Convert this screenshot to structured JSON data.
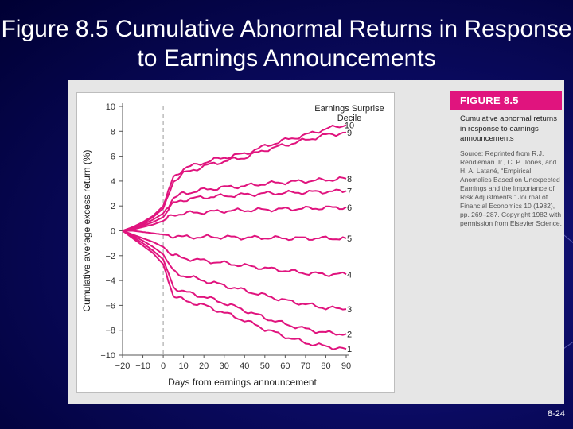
{
  "slide": {
    "title": "Figure 8.5 Cumulative Abnormal Returns in Response to Earnings Announcements",
    "number": "8-24"
  },
  "caption": {
    "heading": "FIGURE 8.5",
    "text": "Cumulative abnormal returns in response to earnings announcements",
    "source": "Source: Reprinted from R.J. Rendleman Jr., C. P. Jones, and H. A. Latané, “Empirical Anomalies Based on Unexpected Earnings and the Importance of Risk Adjustments,” Journal of Financial Economics 10 (1982), pp. 269–287. Copyright 1982 with permission from Elsevier Science."
  },
  "colors": {
    "series": "#e0147e",
    "background": "#000040",
    "caption_heading": "#e0147e"
  },
  "chart_data": {
    "type": "line",
    "xlabel": "Days from earnings announcement",
    "ylabel": "Cumulative average excess return (%)",
    "legend_title": "Earnings Surprise\nDecile",
    "xlim": [
      -20,
      90
    ],
    "ylim": [
      -10,
      10
    ],
    "x_ticks": [
      -20,
      -10,
      0,
      10,
      20,
      30,
      40,
      50,
      60,
      70,
      80,
      90
    ],
    "x_tick_labels": [
      "−20",
      "−10",
      "0",
      "10",
      "20",
      "30",
      "40",
      "50",
      "60",
      "70",
      "80",
      "90"
    ],
    "y_ticks": [
      -10,
      -8,
      -6,
      -4,
      -2,
      0,
      2,
      4,
      6,
      8,
      10
    ],
    "y_tick_labels": [
      "−10",
      "−8",
      "−6",
      "−4",
      "−2",
      "0",
      "2",
      "4",
      "6",
      "8",
      "10"
    ],
    "reference_line_x": 0,
    "x": [
      -20,
      -15,
      -10,
      -5,
      0,
      5,
      10,
      20,
      30,
      40,
      50,
      60,
      70,
      80,
      90
    ],
    "series": [
      {
        "name": "10",
        "values": [
          0,
          0.3,
          0.7,
          1.2,
          2.0,
          4.3,
          5.0,
          5.5,
          5.9,
          6.2,
          6.8,
          7.3,
          7.7,
          8.2,
          8.5
        ]
      },
      {
        "name": "9",
        "values": [
          0,
          0.3,
          0.6,
          1.1,
          1.8,
          4.0,
          4.6,
          5.2,
          5.6,
          5.9,
          6.5,
          6.9,
          7.3,
          7.7,
          7.9
        ]
      },
      {
        "name": "8",
        "values": [
          0,
          0.2,
          0.5,
          0.9,
          1.4,
          2.6,
          3.0,
          3.3,
          3.5,
          3.6,
          3.8,
          3.9,
          4.0,
          4.1,
          4.2
        ]
      },
      {
        "name": "7",
        "values": [
          0,
          0.2,
          0.4,
          0.7,
          1.1,
          2.2,
          2.5,
          2.7,
          2.8,
          2.9,
          3.0,
          3.05,
          3.1,
          3.15,
          3.2
        ]
      },
      {
        "name": "6",
        "values": [
          0,
          0.1,
          0.3,
          0.5,
          0.8,
          1.3,
          1.4,
          1.5,
          1.6,
          1.65,
          1.7,
          1.75,
          1.8,
          1.85,
          1.9
        ]
      },
      {
        "name": "5",
        "values": [
          0,
          0.0,
          -0.1,
          -0.2,
          -0.3,
          -0.4,
          -0.5,
          -0.5,
          -0.5,
          -0.55,
          -0.55,
          -0.6,
          -0.6,
          -0.6,
          -0.6
        ]
      },
      {
        "name": "4",
        "values": [
          0,
          -0.3,
          -0.6,
          -0.9,
          -1.3,
          -2.0,
          -2.2,
          -2.4,
          -2.6,
          -2.8,
          -3.0,
          -3.2,
          -3.4,
          -3.5,
          -3.5
        ]
      },
      {
        "name": "3",
        "values": [
          0,
          -0.4,
          -0.8,
          -1.3,
          -1.9,
          -3.3,
          -3.6,
          -4.0,
          -4.4,
          -4.8,
          -5.2,
          -5.6,
          -5.9,
          -6.2,
          -6.3
        ]
      },
      {
        "name": "2",
        "values": [
          0,
          -0.5,
          -1.0,
          -1.6,
          -2.3,
          -4.5,
          -4.9,
          -5.3,
          -5.8,
          -6.4,
          -7.0,
          -7.5,
          -7.9,
          -8.2,
          -8.3
        ]
      },
      {
        "name": "1",
        "values": [
          0,
          -0.6,
          -1.2,
          -1.8,
          -2.7,
          -5.2,
          -5.6,
          -6.0,
          -6.6,
          -7.2,
          -7.9,
          -8.5,
          -9.0,
          -9.3,
          -9.5
        ]
      }
    ]
  }
}
